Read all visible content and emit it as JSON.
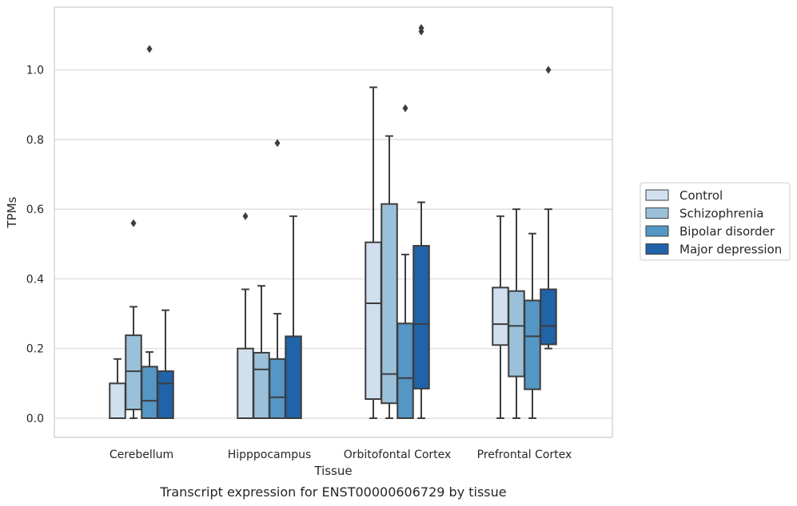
{
  "chart_data": {
    "type": "boxplot",
    "title": "",
    "caption": "Transcript expression for ENST00000606729 by tissue",
    "xlabel": "Tissue",
    "ylabel": "TPMs",
    "ylim": [
      -0.055,
      1.18
    ],
    "yticks": [
      "0.0",
      "0.2",
      "0.4",
      "0.6",
      "0.8",
      "1.0"
    ],
    "grid": "horizontal",
    "legend_position": "right",
    "categories": [
      "Cerebellum",
      "Hipppocampus",
      "Orbitofontal Cortex",
      "Prefrontal Cortex"
    ],
    "series": [
      {
        "name": "Control",
        "color": "#d1e0ef",
        "boxes": [
          {
            "min": 0.0,
            "q1": 0.0,
            "median": 0.0,
            "q3": 0.1,
            "max": 0.17,
            "outliers": []
          },
          {
            "min": 0.0,
            "q1": 0.0,
            "median": 0.0,
            "q3": 0.2,
            "max": 0.37,
            "outliers": [
              0.58
            ]
          },
          {
            "min": 0.0,
            "q1": 0.055,
            "median": 0.33,
            "q3": 0.505,
            "max": 0.95,
            "outliers": []
          },
          {
            "min": 0.0,
            "q1": 0.21,
            "median": 0.27,
            "q3": 0.375,
            "max": 0.58,
            "outliers": []
          }
        ]
      },
      {
        "name": "Schizophrenia",
        "color": "#9bc1da",
        "boxes": [
          {
            "min": 0.0,
            "q1": 0.025,
            "median": 0.135,
            "q3": 0.238,
            "max": 0.32,
            "outliers": [
              0.56
            ]
          },
          {
            "min": 0.0,
            "q1": 0.0,
            "median": 0.14,
            "q3": 0.188,
            "max": 0.38,
            "outliers": []
          },
          {
            "min": 0.0,
            "q1": 0.043,
            "median": 0.127,
            "q3": 0.615,
            "max": 0.81,
            "outliers": []
          },
          {
            "min": 0.0,
            "q1": 0.12,
            "median": 0.265,
            "q3": 0.365,
            "max": 0.6,
            "outliers": []
          }
        ]
      },
      {
        "name": "Bipolar disorder",
        "color": "#5496c4",
        "boxes": [
          {
            "min": 0.0,
            "q1": 0.0,
            "median": 0.05,
            "q3": 0.148,
            "max": 0.19,
            "outliers": [
              1.06
            ]
          },
          {
            "min": 0.0,
            "q1": 0.0,
            "median": 0.06,
            "q3": 0.17,
            "max": 0.3,
            "outliers": [
              0.79
            ]
          },
          {
            "min": 0.0,
            "q1": 0.0,
            "median": 0.115,
            "q3": 0.272,
            "max": 0.47,
            "outliers": [
              0.89
            ]
          },
          {
            "min": 0.0,
            "q1": 0.083,
            "median": 0.235,
            "q3": 0.338,
            "max": 0.53,
            "outliers": []
          }
        ]
      },
      {
        "name": "Major depression",
        "color": "#2163a8",
        "boxes": [
          {
            "min": 0.0,
            "q1": 0.0,
            "median": 0.1,
            "q3": 0.135,
            "max": 0.31,
            "outliers": []
          },
          {
            "min": 0.0,
            "q1": 0.0,
            "median": 0.0,
            "q3": 0.235,
            "max": 0.58,
            "outliers": []
          },
          {
            "min": 0.0,
            "q1": 0.085,
            "median": 0.27,
            "q3": 0.495,
            "max": 0.62,
            "outliers": [
              1.11,
              1.12
            ]
          },
          {
            "min": 0.2,
            "q1": 0.212,
            "median": 0.265,
            "q3": 0.37,
            "max": 0.6,
            "outliers": [
              1.0
            ]
          }
        ]
      }
    ]
  }
}
